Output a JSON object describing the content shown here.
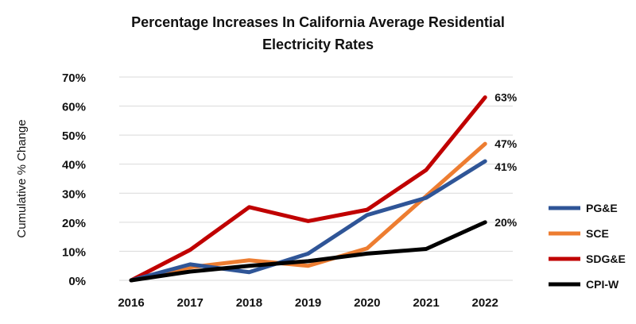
{
  "chart_data": {
    "type": "line",
    "title": "Percentage Increases In California Average Residential Electricity Rates",
    "title_lines": [
      "Percentage Increases In California Average Residential",
      "Electricity Rates"
    ],
    "xlabel": "",
    "ylabel": "Cumulative  % Change",
    "categories": [
      "2016",
      "2017",
      "2018",
      "2019",
      "2020",
      "2021",
      "2022"
    ],
    "ylim": [
      0,
      70
    ],
    "yticks": [
      "0%",
      "10%",
      "20%",
      "30%",
      "40%",
      "50%",
      "60%",
      "70%"
    ],
    "grid": true,
    "legend_position": "right",
    "series": [
      {
        "name": "PG&E",
        "color": "#2f5597",
        "values": [
          0,
          5.5,
          2.8,
          9.2,
          22.5,
          28.4,
          41
        ],
        "end_label": "41%"
      },
      {
        "name": "SCE",
        "color": "#ed7d31",
        "values": [
          0,
          4.5,
          6.9,
          5,
          11,
          29,
          47
        ],
        "end_label": "47%"
      },
      {
        "name": "SDG&E",
        "color": "#c00000",
        "values": [
          0,
          10.5,
          25.2,
          20.4,
          24.3,
          38,
          63
        ],
        "end_label": "63%"
      },
      {
        "name": "CPI-W",
        "color": "#000000",
        "values": [
          0,
          3,
          5,
          6.6,
          9.2,
          10.8,
          20
        ],
        "end_label": "20%"
      }
    ]
  }
}
